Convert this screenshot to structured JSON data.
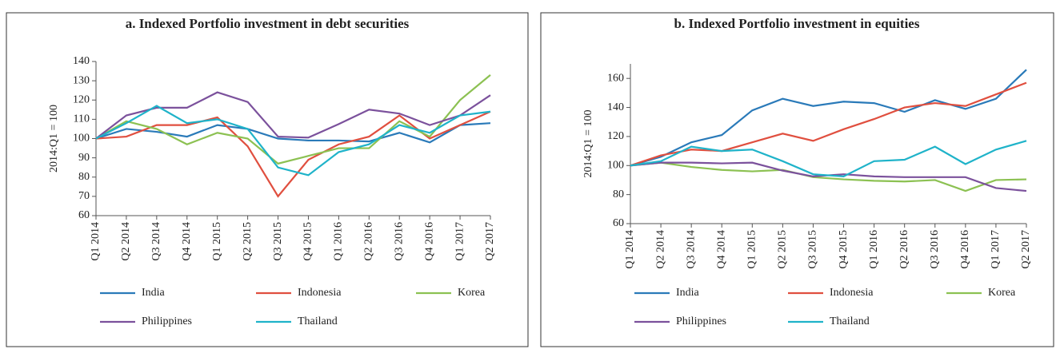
{
  "chart_data": [
    {
      "type": "line",
      "title": "a. Indexed Portfolio investment in debt securities",
      "ylabel": "2014:Q1 = 100",
      "categories": [
        "Q1 2014",
        "Q2 2014",
        "Q3 2014",
        "Q4 2014",
        "Q1 2015",
        "Q2 2015",
        "Q3 2015",
        "Q4 2015",
        "Q1 2016",
        "Q2 2016",
        "Q3 2016",
        "Q4 2016",
        "Q1 2017",
        "Q2 2017"
      ],
      "ylim": [
        60,
        140
      ],
      "yticks": [
        60,
        70,
        80,
        90,
        100,
        110,
        120,
        130,
        140
      ],
      "grid": false,
      "legend": "bottom",
      "series": [
        {
          "name": "India",
          "color": "#2a7ab9",
          "values": [
            100,
            105,
            103.5,
            101,
            107,
            105,
            100,
            99,
            99,
            98.5,
            103,
            98,
            107,
            108
          ]
        },
        {
          "name": "Indonesia",
          "color": "#e04f3f",
          "values": [
            100,
            101,
            107,
            107,
            111,
            96,
            70,
            89,
            97,
            101,
            112,
            100,
            107,
            114
          ]
        },
        {
          "name": "Korea",
          "color": "#8cc152",
          "values": [
            100,
            109,
            105,
            97,
            103,
            100,
            87,
            91,
            95,
            95,
            109,
            101,
            120,
            133
          ]
        },
        {
          "name": "Philippines",
          "color": "#7b519c",
          "values": [
            100,
            112,
            116,
            116,
            124,
            119,
            101,
            100.5,
            107.5,
            115,
            113,
            107,
            112,
            122.5
          ]
        },
        {
          "name": "Thailand",
          "color": "#1fb3c9",
          "values": [
            100,
            108,
            117,
            108,
            110,
            105,
            85,
            81,
            93,
            97,
            107,
            103,
            112,
            114
          ]
        }
      ]
    },
    {
      "type": "line",
      "title": "b. Indexed Portfolio investment in equities",
      "ylabel": "2014:Q1 = 100",
      "categories": [
        "Q1 2014",
        "Q2 2014",
        "Q3 2014",
        "Q4 2014",
        "Q1 2015",
        "Q2 2015",
        "Q3 2015",
        "Q4 2015",
        "Q1 2016",
        "Q2 2016",
        "Q3 2016",
        "Q4 2016",
        "Q1 2017",
        "Q2 2017"
      ],
      "ylim": [
        60,
        170
      ],
      "yticks": [
        60,
        80,
        100,
        120,
        140,
        160
      ],
      "grid": false,
      "legend": "bottom",
      "series": [
        {
          "name": "India",
          "color": "#2a7ab9",
          "values": [
            100,
            106,
            116,
            121,
            138,
            146,
            141,
            144,
            143,
            137,
            145,
            139,
            146,
            166
          ]
        },
        {
          "name": "Indonesia",
          "color": "#e04f3f",
          "values": [
            100,
            107,
            111,
            110,
            116,
            122,
            117,
            125,
            132,
            140,
            143,
            141,
            149,
            157
          ]
        },
        {
          "name": "Korea",
          "color": "#8cc152",
          "values": [
            100,
            102,
            99,
            97,
            96,
            97,
            92,
            90.5,
            89.5,
            89,
            90,
            82.5,
            90,
            90.5
          ]
        },
        {
          "name": "Philippines",
          "color": "#7b519c",
          "values": [
            100,
            102,
            102,
            101.5,
            102,
            96.5,
            92.5,
            94,
            92.5,
            92,
            92,
            92,
            84.5,
            82.5
          ]
        },
        {
          "name": "Thailand",
          "color": "#1fb3c9",
          "values": [
            100,
            103,
            113,
            110,
            111,
            103,
            94,
            92.5,
            103,
            104,
            113,
            101,
            111,
            117
          ]
        }
      ]
    }
  ]
}
